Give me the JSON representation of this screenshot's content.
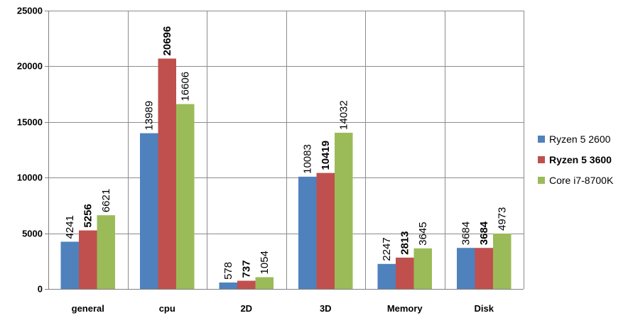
{
  "chart_data": {
    "type": "bar",
    "categories": [
      "general",
      "cpu",
      "2D",
      "3D",
      "Memory",
      "Disk"
    ],
    "series": [
      {
        "name": "Ryzen 5 2600",
        "color": "#4F81BD",
        "bold": false,
        "values": [
          4241,
          13989,
          578,
          10083,
          2247,
          3684
        ]
      },
      {
        "name": "Ryzen 5 3600",
        "color": "#C0504D",
        "bold": true,
        "values": [
          5256,
          20696,
          737,
          10419,
          2813,
          3684
        ]
      },
      {
        "name": "Core i7-8700K",
        "color": "#9BBB59",
        "bold": false,
        "values": [
          6621,
          16606,
          1054,
          14032,
          3645,
          4973
        ]
      }
    ],
    "yticks": [
      "0",
      "5000",
      "10000",
      "15000",
      "20000",
      "25000"
    ],
    "ylim": [
      0,
      25000
    ],
    "title": "",
    "xlabel": "",
    "ylabel": "",
    "grid": true,
    "legend_position": "right"
  }
}
